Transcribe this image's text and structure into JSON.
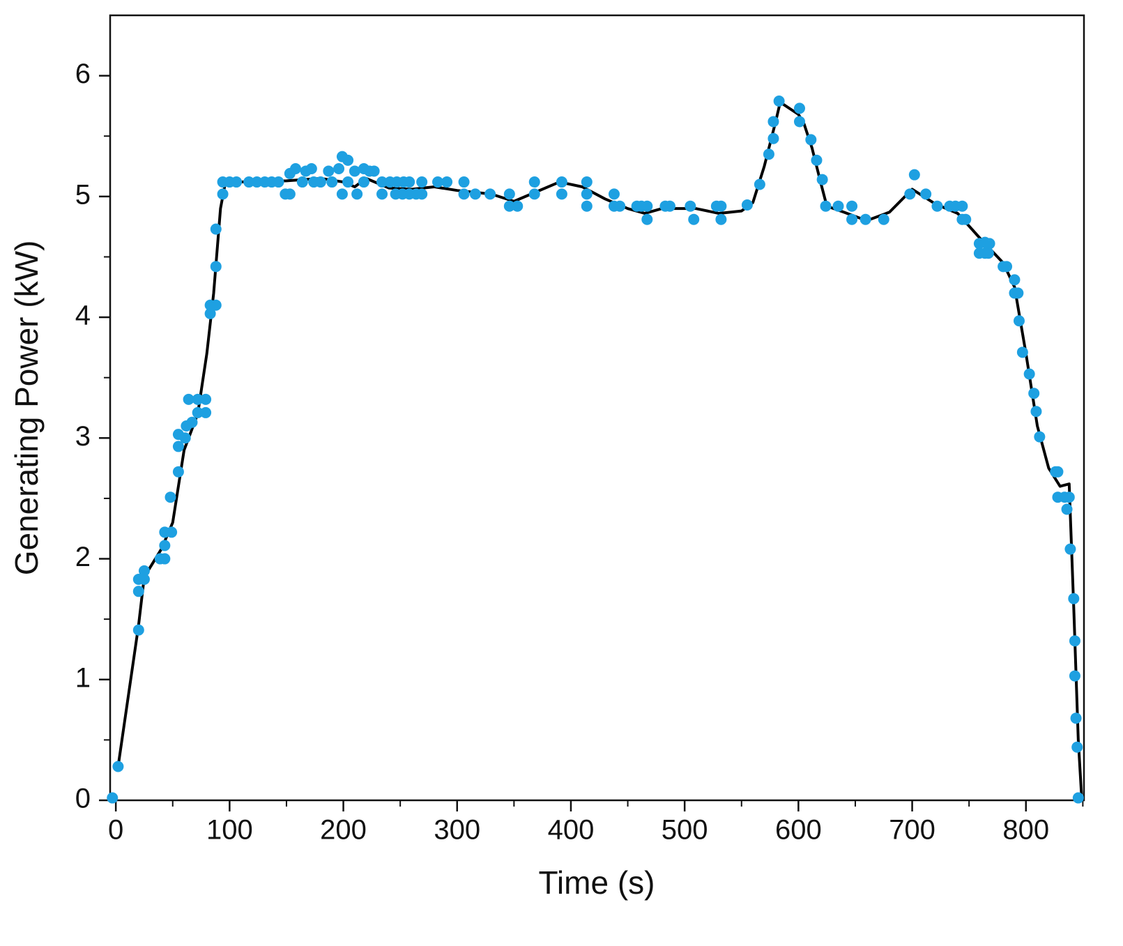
{
  "chart_data": {
    "type": "scatter",
    "x_label": "Time (s)",
    "y_label": "Generating Power (kW)",
    "xlim": [
      -5,
      851
    ],
    "ylim": [
      0,
      6.5
    ],
    "xticks": [
      0,
      100,
      200,
      300,
      400,
      500,
      600,
      700,
      800
    ],
    "yticks": [
      0,
      1,
      2,
      3,
      4,
      5,
      6
    ],
    "xminorticks": [
      50,
      150,
      250,
      350,
      450,
      550,
      650,
      750,
      850
    ],
    "yminorticks": [
      0.5,
      1.5,
      2.5,
      3.5,
      4.5,
      5.5
    ],
    "series": [
      {
        "kind": "scatter",
        "color": "#1ea0e1",
        "x": [
          -3,
          2,
          20,
          20,
          20,
          25,
          25,
          39,
          43,
          43,
          43,
          49,
          48,
          55,
          55,
          55,
          61,
          62,
          64,
          67,
          72,
          72,
          79,
          79,
          83,
          83,
          88,
          88,
          88,
          94,
          94,
          100,
          106,
          117,
          124,
          131,
          137,
          143,
          149,
          153,
          153,
          158,
          164,
          167,
          172,
          174,
          180,
          187,
          190,
          196,
          199,
          204,
          199,
          204,
          210,
          212,
          218,
          218,
          223,
          227,
          234,
          234,
          241,
          246,
          247,
          252,
          253,
          258,
          258,
          264,
          269,
          269,
          283,
          291,
          306,
          306,
          316,
          329,
          346,
          346,
          353,
          368,
          368,
          392,
          392,
          414,
          414,
          414,
          438,
          438,
          443,
          458,
          462,
          467,
          467,
          483,
          487,
          505,
          508,
          528,
          532,
          532,
          555,
          566,
          574,
          578,
          578,
          583,
          601,
          601,
          611,
          616,
          621,
          624,
          635,
          647,
          647,
          659,
          675,
          698,
          702,
          712,
          722,
          733,
          738,
          744,
          744,
          747,
          759,
          759,
          764,
          767,
          768,
          764,
          780,
          783,
          790,
          790,
          793,
          794,
          797,
          803,
          807,
          809,
          812,
          826,
          828,
          828,
          834,
          836,
          838,
          839,
          842,
          843,
          843,
          844,
          845,
          846
        ],
        "values": [
          0.02,
          0.28,
          1.41,
          1.73,
          1.83,
          1.83,
          1.9,
          2.0,
          2.0,
          2.11,
          2.22,
          2.22,
          2.51,
          2.72,
          2.93,
          3.03,
          3.0,
          3.1,
          3.32,
          3.13,
          3.21,
          3.32,
          3.21,
          3.32,
          4.03,
          4.1,
          4.1,
          4.42,
          4.73,
          5.02,
          5.12,
          5.12,
          5.12,
          5.12,
          5.12,
          5.12,
          5.12,
          5.12,
          5.02,
          5.02,
          5.19,
          5.23,
          5.12,
          5.21,
          5.23,
          5.12,
          5.12,
          5.21,
          5.12,
          5.23,
          5.33,
          5.3,
          5.02,
          5.12,
          5.21,
          5.02,
          5.23,
          5.12,
          5.21,
          5.21,
          5.12,
          5.02,
          5.12,
          5.02,
          5.12,
          5.02,
          5.12,
          5.12,
          5.02,
          5.02,
          5.12,
          5.02,
          5.12,
          5.12,
          5.12,
          5.02,
          5.02,
          5.02,
          5.02,
          4.92,
          4.92,
          5.12,
          5.02,
          5.12,
          5.02,
          5.12,
          5.02,
          4.92,
          5.02,
          4.92,
          4.92,
          4.92,
          4.92,
          4.92,
          4.81,
          4.92,
          4.92,
          4.92,
          4.81,
          4.92,
          4.81,
          4.92,
          4.93,
          5.1,
          5.35,
          5.48,
          5.62,
          5.79,
          5.73,
          5.62,
          5.47,
          5.3,
          5.14,
          4.92,
          4.92,
          4.81,
          4.92,
          4.81,
          4.81,
          5.02,
          5.18,
          5.02,
          4.92,
          4.92,
          4.92,
          4.92,
          4.81,
          4.81,
          4.61,
          4.53,
          4.62,
          4.53,
          4.61,
          4.53,
          4.42,
          4.42,
          4.31,
          4.2,
          4.2,
          3.97,
          3.71,
          3.53,
          3.37,
          3.22,
          3.01,
          2.72,
          2.72,
          2.51,
          2.51,
          2.41,
          2.51,
          2.08,
          1.67,
          1.32,
          1.03,
          0.68,
          0.44,
          0.02
        ]
      },
      {
        "kind": "line",
        "color": "#000000",
        "x": [
          2,
          20,
          25,
          40,
          50,
          60,
          72,
          80,
          86,
          92,
          96,
          110,
          150,
          180,
          200,
          210,
          220,
          240,
          260,
          280,
          300,
          330,
          350,
          365,
          390,
          410,
          430,
          450,
          465,
          480,
          510,
          530,
          550,
          560,
          570,
          580,
          584,
          600,
          605,
          612,
          620,
          625,
          640,
          660,
          680,
          700,
          720,
          740,
          760,
          780,
          790,
          800,
          810,
          820,
          830,
          838,
          842,
          846,
          849
        ],
        "values": [
          0.28,
          1.45,
          1.85,
          2.08,
          2.3,
          2.9,
          3.2,
          3.7,
          4.2,
          4.9,
          5.1,
          5.12,
          5.13,
          5.15,
          5.12,
          5.08,
          5.15,
          5.07,
          5.06,
          5.08,
          5.05,
          5.02,
          4.96,
          5.02,
          5.12,
          5.08,
          4.98,
          4.9,
          4.86,
          4.9,
          4.9,
          4.86,
          4.88,
          4.95,
          5.25,
          5.62,
          5.78,
          5.68,
          5.6,
          5.4,
          5.1,
          4.92,
          4.87,
          4.8,
          4.87,
          5.06,
          4.94,
          4.86,
          4.65,
          4.45,
          4.25,
          3.7,
          3.1,
          2.75,
          2.6,
          2.62,
          1.6,
          0.5,
          0.02
        ]
      }
    ]
  }
}
